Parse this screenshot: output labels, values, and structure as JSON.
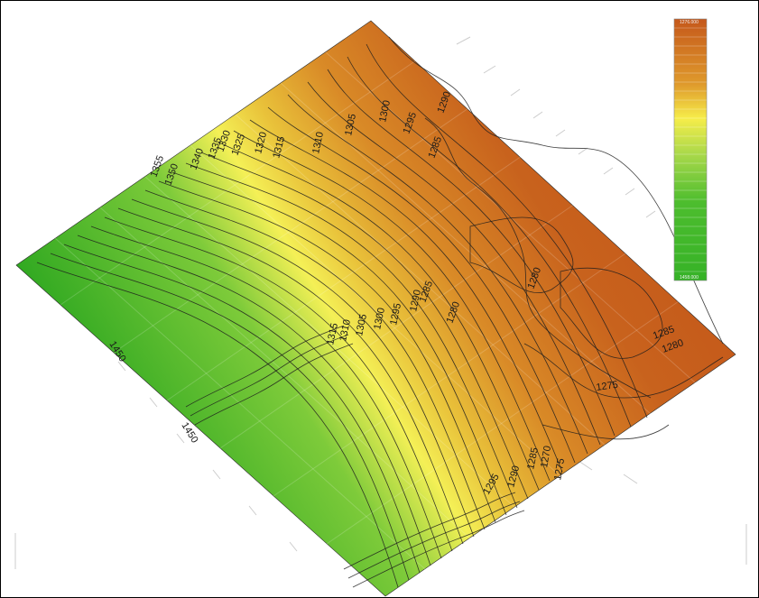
{
  "map": {
    "colors": {
      "high": "#3cb527",
      "mid": "#f7ef3c",
      "low": "#c8581c",
      "contour": "#1d1d1d"
    },
    "contour_labels": [
      "1355",
      "1350",
      "1340",
      "1335",
      "1330",
      "1325",
      "1320",
      "1315",
      "1310",
      "1305",
      "1300",
      "1295",
      "1290",
      "1285",
      "1280",
      "1315",
      "1310",
      "1305",
      "1300",
      "1295",
      "1290",
      "1285",
      "1280",
      "1285",
      "1280",
      "1275",
      "1270",
      "1275",
      "1450",
      "1450",
      "1295",
      "1290",
      "1285"
    ],
    "legend_top": "1276.000",
    "legend_bottom": "1458.000"
  }
}
